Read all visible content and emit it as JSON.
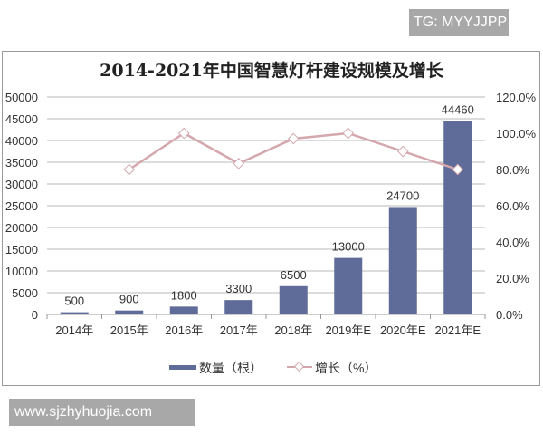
{
  "watermark_top": "TG: MYYJJPP",
  "watermark_bottom": "www.sjzhyhuojia.com",
  "colors": {
    "bar": "#5f6b99",
    "line": "#d4a7ad",
    "grid": "#d0d0d0",
    "axis_text": "#333333"
  },
  "chart_data": {
    "type": "bar+line",
    "title": "2014-2021年中国智慧灯杆建设规模及增长",
    "categories": [
      "2014年",
      "2015年",
      "2016年",
      "2017年",
      "2018年",
      "2019年E",
      "2020年E",
      "2021年E"
    ],
    "series": [
      {
        "name": "数量（根）",
        "type": "bar",
        "axis": "left",
        "values": [
          500,
          900,
          1800,
          3300,
          6500,
          13000,
          24700,
          44460
        ],
        "labels": [
          "500",
          "900",
          "1800",
          "3300",
          "6500",
          "13000",
          "24700",
          "44460"
        ]
      },
      {
        "name": "增长（%）",
        "type": "line",
        "axis": "right",
        "values": [
          null,
          80.0,
          100.0,
          83.3,
          97.0,
          100.0,
          90.0,
          80.0
        ]
      }
    ],
    "left_axis": {
      "ylim": [
        0,
        50000
      ],
      "ticks": [
        "0",
        "5000",
        "10000",
        "15000",
        "20000",
        "25000",
        "30000",
        "35000",
        "40000",
        "45000",
        "50000"
      ]
    },
    "right_axis": {
      "ylim": [
        0,
        120
      ],
      "ticks": [
        "0.0%",
        "20.0%",
        "40.0%",
        "60.0%",
        "80.0%",
        "100.0%",
        "120.0%"
      ]
    },
    "grid": true,
    "legend_position": "bottom",
    "legend": [
      "数量（根）",
      "增长（%）"
    ]
  }
}
